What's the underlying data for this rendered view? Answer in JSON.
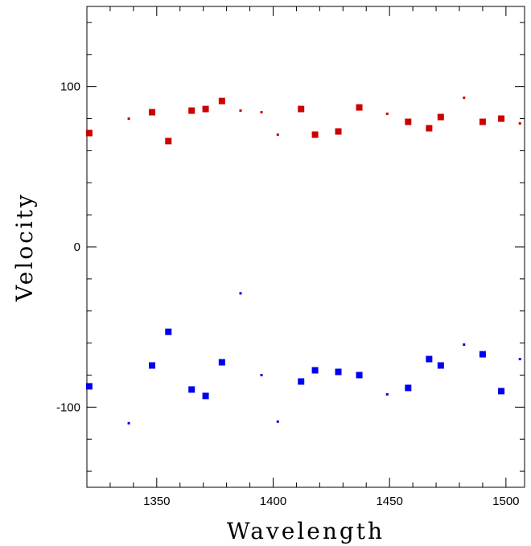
{
  "chart_data": {
    "type": "scatter",
    "title": "",
    "xlabel": "Wavelength",
    "ylabel": "Velocity",
    "xlim": [
      1320,
      1508
    ],
    "ylim": [
      -150,
      150
    ],
    "x_ticks": [
      1350,
      1400,
      1450,
      1500
    ],
    "y_ticks": [
      -100,
      0,
      100
    ],
    "grid": false,
    "legend": "none",
    "series": [
      {
        "color": "#cc0000",
        "points": [
          {
            "x": 1321,
            "y": 71,
            "marker": "large"
          },
          {
            "x": 1338,
            "y": 80,
            "marker": "small"
          },
          {
            "x": 1348,
            "y": 84,
            "marker": "large"
          },
          {
            "x": 1355,
            "y": 66,
            "marker": "large"
          },
          {
            "x": 1365,
            "y": 85,
            "marker": "large"
          },
          {
            "x": 1371,
            "y": 86,
            "marker": "large"
          },
          {
            "x": 1378,
            "y": 91,
            "marker": "large"
          },
          {
            "x": 1386,
            "y": 85,
            "marker": "small"
          },
          {
            "x": 1395,
            "y": 84,
            "marker": "small"
          },
          {
            "x": 1402,
            "y": 70,
            "marker": "small"
          },
          {
            "x": 1412,
            "y": 86,
            "marker": "large"
          },
          {
            "x": 1418,
            "y": 70,
            "marker": "large"
          },
          {
            "x": 1428,
            "y": 72,
            "marker": "large"
          },
          {
            "x": 1437,
            "y": 87,
            "marker": "large"
          },
          {
            "x": 1449,
            "y": 83,
            "marker": "small"
          },
          {
            "x": 1458,
            "y": 78,
            "marker": "large"
          },
          {
            "x": 1467,
            "y": 74,
            "marker": "large"
          },
          {
            "x": 1472,
            "y": 81,
            "marker": "large"
          },
          {
            "x": 1482,
            "y": 93,
            "marker": "small"
          },
          {
            "x": 1490,
            "y": 78,
            "marker": "large"
          },
          {
            "x": 1498,
            "y": 80,
            "marker": "large"
          },
          {
            "x": 1506,
            "y": 77,
            "marker": "small"
          }
        ]
      },
      {
        "color": "#0000ee",
        "points": [
          {
            "x": 1321,
            "y": -87,
            "marker": "large"
          },
          {
            "x": 1338,
            "y": -110,
            "marker": "small"
          },
          {
            "x": 1348,
            "y": -74,
            "marker": "large"
          },
          {
            "x": 1355,
            "y": -53,
            "marker": "large"
          },
          {
            "x": 1365,
            "y": -89,
            "marker": "large"
          },
          {
            "x": 1371,
            "y": -93,
            "marker": "large"
          },
          {
            "x": 1378,
            "y": -72,
            "marker": "large"
          },
          {
            "x": 1386,
            "y": -29,
            "marker": "small"
          },
          {
            "x": 1395,
            "y": -80,
            "marker": "small"
          },
          {
            "x": 1402,
            "y": -109,
            "marker": "small"
          },
          {
            "x": 1412,
            "y": -84,
            "marker": "large"
          },
          {
            "x": 1418,
            "y": -77,
            "marker": "large"
          },
          {
            "x": 1428,
            "y": -78,
            "marker": "large"
          },
          {
            "x": 1437,
            "y": -80,
            "marker": "large"
          },
          {
            "x": 1449,
            "y": -92,
            "marker": "small"
          },
          {
            "x": 1458,
            "y": -88,
            "marker": "large"
          },
          {
            "x": 1467,
            "y": -70,
            "marker": "large"
          },
          {
            "x": 1472,
            "y": -74,
            "marker": "large"
          },
          {
            "x": 1482,
            "y": -61,
            "marker": "small"
          },
          {
            "x": 1490,
            "y": -67,
            "marker": "large"
          },
          {
            "x": 1498,
            "y": -90,
            "marker": "large"
          },
          {
            "x": 1506,
            "y": -70,
            "marker": "small"
          }
        ]
      }
    ]
  }
}
